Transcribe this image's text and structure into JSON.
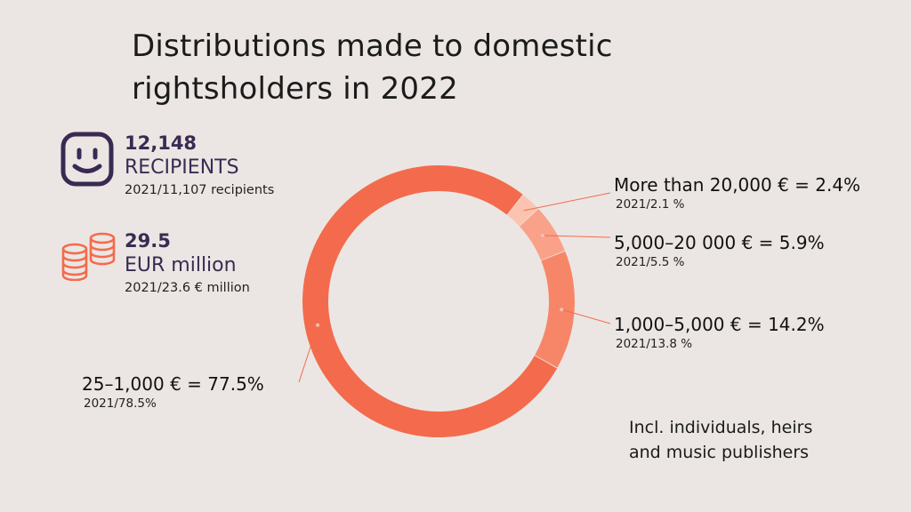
{
  "title_lines": [
    "Distributions made to domestic",
    "rightsholders in 2022"
  ],
  "stats": [
    {
      "icon": "smiley-face-icon",
      "number": "12,148",
      "label": "RECIPIENTS",
      "previous": "2021/11,107 recipients"
    },
    {
      "icon": "coin-stack-icon",
      "number": "29.5",
      "label": "EUR million",
      "previous": "2021/23.6 € million"
    }
  ],
  "note_lines": [
    "Incl. individuals, heirs",
    "and music publishers"
  ],
  "chart_data": {
    "type": "pie",
    "style": "donut",
    "title": "Distributions made to domestic rightsholders in 2022",
    "series": [
      {
        "label": "More than 20,000 € = 2.4%",
        "previous": "2021/2.1 %",
        "value": 2.4,
        "color": "#fbc4b0"
      },
      {
        "label": "5,000–20 000 € = 5.9%",
        "previous": "2021/5.5 %",
        "value": 5.9,
        "color": "#f9a189"
      },
      {
        "label": "1,000–5,000 € = 14.2%",
        "previous": "2021/13.8 %",
        "value": 14.2,
        "color": "#f78669"
      },
      {
        "label": "25–1,000 € = 77.5%",
        "previous": "2021/78.5%",
        "value": 77.5,
        "color": "#f36b4c"
      }
    ]
  }
}
